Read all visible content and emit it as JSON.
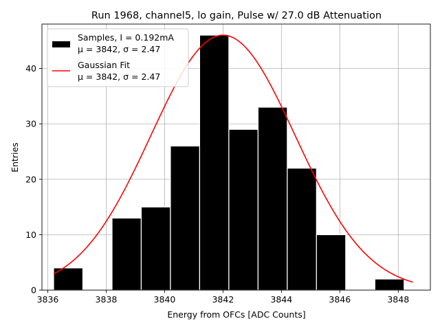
{
  "chart_data": {
    "type": "bar",
    "title": "Run 1968, channel5, lo gain, Pulse w/ 27.0 dB Attenuation",
    "xlabel": "Energy from OFCs [ADC Counts]",
    "ylabel": "Entries",
    "xlim": [
      3835.8,
      3849.1
    ],
    "ylim": [
      0,
      48
    ],
    "xticks": [
      3836,
      3838,
      3840,
      3842,
      3844,
      3846,
      3848
    ],
    "yticks": [
      0,
      10,
      20,
      30,
      40
    ],
    "grid": true,
    "bins": {
      "edges": [
        3836.2,
        3838.2,
        3840.2,
        3842.2,
        3844.2,
        3846.2,
        3848.2
      ],
      "comment_width": 1
    },
    "histogram": {
      "name": "Samples, I = 0.192mA",
      "stats": "μ = 3842, σ = 2.47",
      "color": "#000000",
      "bin_left": [
        3836.2,
        3838.2,
        3839.2,
        3840.2,
        3841.2,
        3842.2,
        3843.2,
        3844.2,
        3845.2,
        3846.2,
        3847.2
      ],
      "bin_width": 1.0,
      "values": [
        4,
        13,
        15,
        26,
        46,
        29,
        33,
        22,
        10,
        0,
        2
      ]
    },
    "fit": {
      "name": "Gaussian Fit",
      "stats": "μ = 3842, σ = 2.47",
      "color": "#ff0000",
      "mu": 3842.0,
      "sigma": 2.47,
      "amplitude": 46.0,
      "x_range": [
        3836.2,
        3848.5
      ]
    },
    "legend_position": "top-left"
  }
}
